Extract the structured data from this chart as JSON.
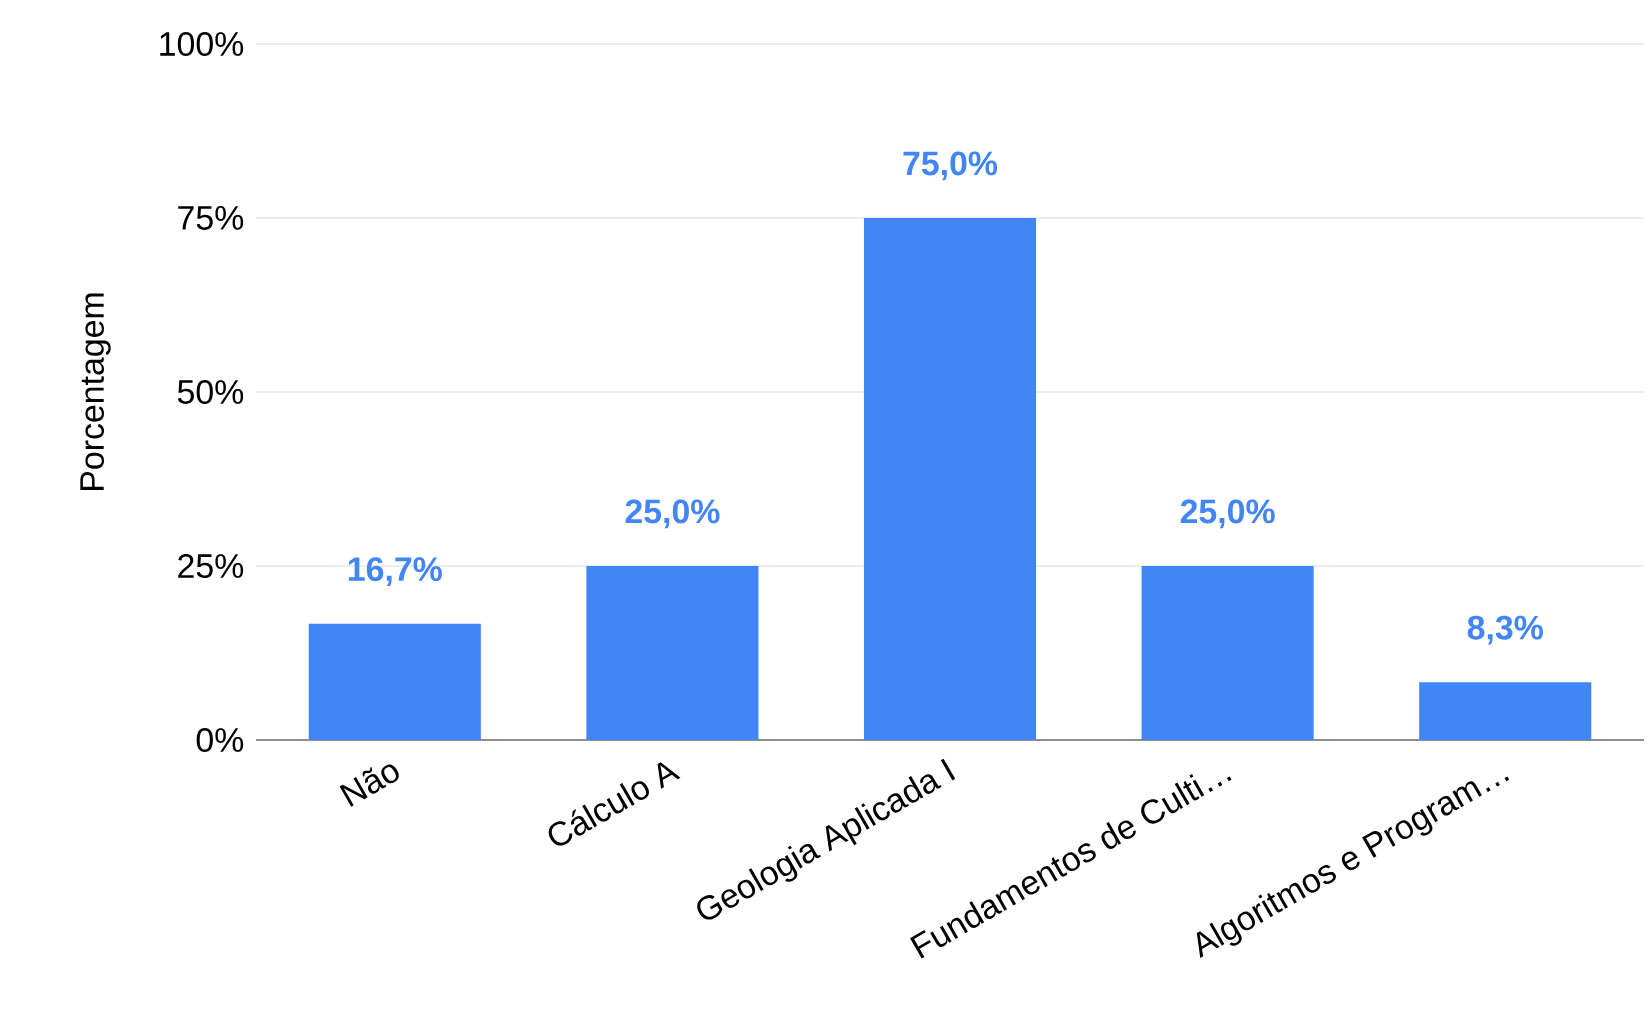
{
  "chart_data": {
    "type": "bar",
    "ylabel": "Porcentagem",
    "categories": [
      "Não",
      "Cálculo A",
      "Geologia Aplicada I",
      "Fundamentos de Culti…",
      "Algoritmos e Program…"
    ],
    "values": [
      16.7,
      25.0,
      75.0,
      25.0,
      8.3
    ],
    "value_labels": [
      "16,7%",
      "25,0%",
      "75,0%",
      "25,0%",
      "8,3%"
    ],
    "color": "#4285f4",
    "ylim": [
      0,
      100
    ],
    "yticks": [
      {
        "value": 0,
        "label": "0%"
      },
      {
        "value": 25,
        "label": "25%"
      },
      {
        "value": 50,
        "label": "50%"
      },
      {
        "value": 75,
        "label": "75%"
      },
      {
        "value": 100,
        "label": "100%"
      }
    ],
    "grid": "y"
  }
}
